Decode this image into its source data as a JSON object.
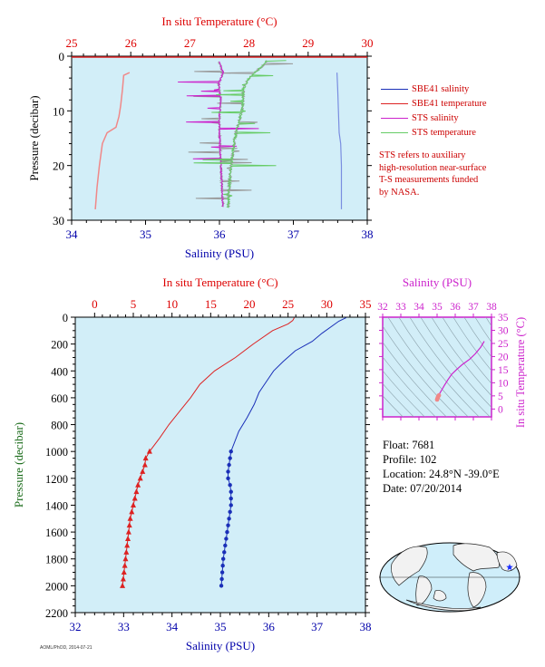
{
  "legend": {
    "items": [
      {
        "label": "SBE41 salinity",
        "color": "#1a2fb8"
      },
      {
        "label": "SBE41 temperature",
        "color": "#dd2222"
      },
      {
        "label": "STS salinity",
        "color": "#cc22cc"
      },
      {
        "label": "STS temperature",
        "color": "#66cc66"
      }
    ]
  },
  "note": {
    "lines": [
      "STS refers to auxiliary",
      "high-resolution near-surface",
      "T-S measurements funded",
      "by NASA."
    ]
  },
  "float_info": {
    "float": "Float:  7681",
    "profile": "Profile:  102",
    "location": "Location:  24.8°N  -39.0°E",
    "date": "Date:  07/20/2014"
  },
  "credit": "AOML/PhOD, 2014-07-21",
  "colors": {
    "plot_bg": "#d2eef8",
    "salinity": "#1a2fb8",
    "temperature": "#dd2222",
    "sts_salinity": "#cc22cc",
    "sts_temperature": "#66cc66",
    "sts_gray": "#999999",
    "axis_red": "#dd0000",
    "axis_blue": "#0000aa",
    "axis_green": "#1a6b1a",
    "axis_magenta": "#cc22cc"
  },
  "chart_data": [
    {
      "type": "line",
      "title": "",
      "xlabel": "Salinity (PSU)",
      "x2label": "In situ Temperature (°C)",
      "ylabel": "Pressure (decibar)",
      "xlim": [
        34,
        38
      ],
      "x2lim": [
        25,
        30
      ],
      "ylim": [
        30,
        0
      ],
      "xticks": [
        34,
        35,
        36,
        37,
        38
      ],
      "x2ticks": [
        25,
        26,
        27,
        28,
        29,
        30
      ],
      "yticks": [
        0,
        10,
        20,
        30
      ],
      "series": [
        {
          "name": "SBE41 salinity",
          "axis": "bottom",
          "points": [
            [
              37.59,
              3
            ],
            [
              37.6,
              6
            ],
            [
              37.61,
              10
            ],
            [
              37.62,
              14
            ],
            [
              37.64,
              16
            ],
            [
              37.65,
              20
            ],
            [
              37.65,
              24
            ],
            [
              37.65,
              28
            ]
          ]
        },
        {
          "name": "SBE41 temperature",
          "axis": "top",
          "points": [
            [
              25.98,
              3
            ],
            [
              25.88,
              3.5
            ],
            [
              25.86,
              6
            ],
            [
              25.83,
              9
            ],
            [
              25.8,
              11
            ],
            [
              25.75,
              13
            ],
            [
              25.6,
              14
            ],
            [
              25.52,
              16
            ],
            [
              25.47,
              20
            ],
            [
              25.43,
              24
            ],
            [
              25.4,
              28
            ]
          ]
        },
        {
          "name": "STS salinity",
          "axis": "bottom",
          "points": [
            [
              35.99,
              1
            ],
            [
              36.05,
              3
            ],
            [
              35.99,
              5
            ],
            [
              36.02,
              8
            ],
            [
              36.0,
              11
            ],
            [
              36.0,
              14
            ],
            [
              36.01,
              17
            ],
            [
              36.02,
              20
            ],
            [
              36.03,
              23
            ],
            [
              36.04,
              26
            ],
            [
              36.05,
              27.6
            ]
          ]
        },
        {
          "name": "STS temperature",
          "axis": "top",
          "points": [
            [
              28.3,
              0.8
            ],
            [
              28.25,
              1.6
            ],
            [
              28.15,
              2.5
            ],
            [
              28.0,
              4
            ],
            [
              27.9,
              6
            ],
            [
              27.9,
              8
            ],
            [
              27.88,
              10
            ],
            [
              27.83,
              12
            ],
            [
              27.78,
              14
            ],
            [
              27.73,
              17
            ],
            [
              27.7,
              20
            ],
            [
              27.67,
              23
            ],
            [
              27.65,
              26
            ],
            [
              27.65,
              27.7
            ]
          ]
        }
      ]
    },
    {
      "type": "line",
      "title": "",
      "xlabel": "Salinity (PSU)",
      "x2label": "In situ Temperature (°C)",
      "ylabel": "Pressure (decibar)",
      "xlim": [
        32,
        38
      ],
      "x2lim": [
        -2.5,
        35
      ],
      "ylim": [
        2200,
        0
      ],
      "xticks": [
        32,
        33,
        34,
        35,
        36,
        37,
        38
      ],
      "x2ticks": [
        0,
        5,
        10,
        15,
        20,
        25,
        30,
        35
      ],
      "yticks": [
        0,
        200,
        400,
        600,
        800,
        1000,
        1200,
        1400,
        1600,
        1800,
        2000,
        2200
      ],
      "series": [
        {
          "name": "SBE41 temperature",
          "axis": "top",
          "marker": "triangle",
          "points": [
            [
              25.8,
              4
            ],
            [
              25.6,
              25
            ],
            [
              25.0,
              50
            ],
            [
              23.0,
              100
            ],
            [
              20.5,
              200
            ],
            [
              18.2,
              300
            ],
            [
              15.5,
              400
            ],
            [
              13.6,
              500
            ],
            [
              12.4,
              600
            ],
            [
              11.0,
              700
            ],
            [
              9.6,
              800
            ],
            [
              8.4,
              900
            ],
            [
              7.1,
              1000
            ],
            [
              6.6,
              1050
            ],
            [
              6.5,
              1100
            ],
            [
              6.2,
              1150
            ],
            [
              5.9,
              1200
            ],
            [
              5.6,
              1250
            ],
            [
              5.4,
              1300
            ],
            [
              5.2,
              1350
            ],
            [
              5.0,
              1400
            ],
            [
              4.8,
              1450
            ],
            [
              4.6,
              1500
            ],
            [
              4.5,
              1550
            ],
            [
              4.4,
              1600
            ],
            [
              4.3,
              1650
            ],
            [
              4.2,
              1700
            ],
            [
              4.1,
              1750
            ],
            [
              4.0,
              1800
            ],
            [
              3.9,
              1850
            ],
            [
              3.8,
              1900
            ],
            [
              3.7,
              1950
            ],
            [
              3.6,
              2000
            ]
          ]
        },
        {
          "name": "SBE41 salinity",
          "axis": "bottom",
          "marker": "circle",
          "points": [
            [
              37.6,
              4
            ],
            [
              37.45,
              30
            ],
            [
              37.1,
              120
            ],
            [
              36.9,
              180
            ],
            [
              36.55,
              250
            ],
            [
              36.3,
              330
            ],
            [
              36.1,
              400
            ],
            [
              35.95,
              480
            ],
            [
              35.8,
              560
            ],
            [
              35.7,
              650
            ],
            [
              35.55,
              750
            ],
            [
              35.38,
              850
            ],
            [
              35.22,
              1000
            ],
            [
              35.2,
              1050
            ],
            [
              35.18,
              1100
            ],
            [
              35.16,
              1150
            ],
            [
              35.16,
              1200
            ],
            [
              35.2,
              1250
            ],
            [
              35.22,
              1300
            ],
            [
              35.22,
              1350
            ],
            [
              35.22,
              1400
            ],
            [
              35.2,
              1450
            ],
            [
              35.18,
              1500
            ],
            [
              35.16,
              1550
            ],
            [
              35.14,
              1600
            ],
            [
              35.12,
              1650
            ],
            [
              35.1,
              1700
            ],
            [
              35.08,
              1750
            ],
            [
              35.06,
              1800
            ],
            [
              35.05,
              1850
            ],
            [
              35.04,
              1900
            ],
            [
              35.03,
              1950
            ],
            [
              35.02,
              2000
            ]
          ]
        }
      ]
    },
    {
      "type": "scatter",
      "title": "",
      "xlabel": "Salinity (PSU)",
      "ylabel": "In situ Temperature (°C)",
      "xlim": [
        32,
        38
      ],
      "ylim": [
        -3,
        35
      ],
      "xticks": [
        32,
        33,
        34,
        35,
        36,
        37,
        38
      ],
      "yticks": [
        0,
        5,
        10,
        15,
        20,
        25,
        30,
        35
      ],
      "series": [
        {
          "name": "T-S",
          "points": [
            [
              37.6,
              25.8
            ],
            [
              37.4,
              23.5
            ],
            [
              37.1,
              21
            ],
            [
              36.8,
              19
            ],
            [
              36.4,
              17
            ],
            [
              36.1,
              15.2
            ],
            [
              35.8,
              13.2
            ],
            [
              35.6,
              11.2
            ],
            [
              35.4,
              9
            ],
            [
              35.25,
              7.2
            ],
            [
              35.15,
              6
            ],
            [
              35.1,
              5.2
            ],
            [
              35.05,
              4.6
            ],
            [
              35.02,
              4.0
            ],
            [
              35.0,
              3.6
            ]
          ]
        }
      ]
    }
  ]
}
